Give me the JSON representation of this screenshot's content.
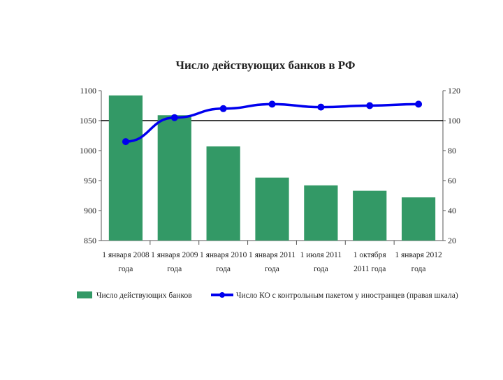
{
  "chart_data": {
    "type": "bar+line",
    "title": "Число действующих банков в РФ",
    "categories": [
      [
        "1 января 2008",
        "года"
      ],
      [
        "1 января 2009",
        "года"
      ],
      [
        "1 января 2010",
        "года"
      ],
      [
        "1 января 2011",
        "года"
      ],
      [
        "1 июля 2011",
        "года"
      ],
      [
        "1 октября",
        "2011 года"
      ],
      [
        "1 января 2012",
        "года"
      ]
    ],
    "series": [
      {
        "name": "Число действующих банков",
        "kind": "bar",
        "axis": "left",
        "color": "#339966",
        "values": [
          1092,
          1059,
          1007,
          955,
          942,
          933,
          922
        ]
      },
      {
        "name": "Число КО с контрольным пакетом у иностранцев (правая шкала)",
        "kind": "line",
        "axis": "right",
        "color": "#0000ee",
        "values": [
          86,
          102,
          108,
          111,
          109,
          110,
          111
        ]
      }
    ],
    "left_axis": {
      "min": 850,
      "max": 1100,
      "step": 50,
      "ticks": [
        "850",
        "900",
        "950",
        "1000",
        "1050",
        "1100"
      ]
    },
    "right_axis": {
      "min": 20,
      "max": 120,
      "step": 20,
      "ticks": [
        "20",
        "40",
        "60",
        "80",
        "100",
        "120"
      ]
    },
    "reference_line": {
      "axis": "right",
      "value": 100
    },
    "legend": {
      "position": "bottom",
      "items": [
        {
          "label": "Число действующих банков",
          "kind": "bar"
        },
        {
          "label": "Число КО с контрольным пакетом у иностранцев (правая шкала)",
          "kind": "line"
        }
      ]
    }
  }
}
